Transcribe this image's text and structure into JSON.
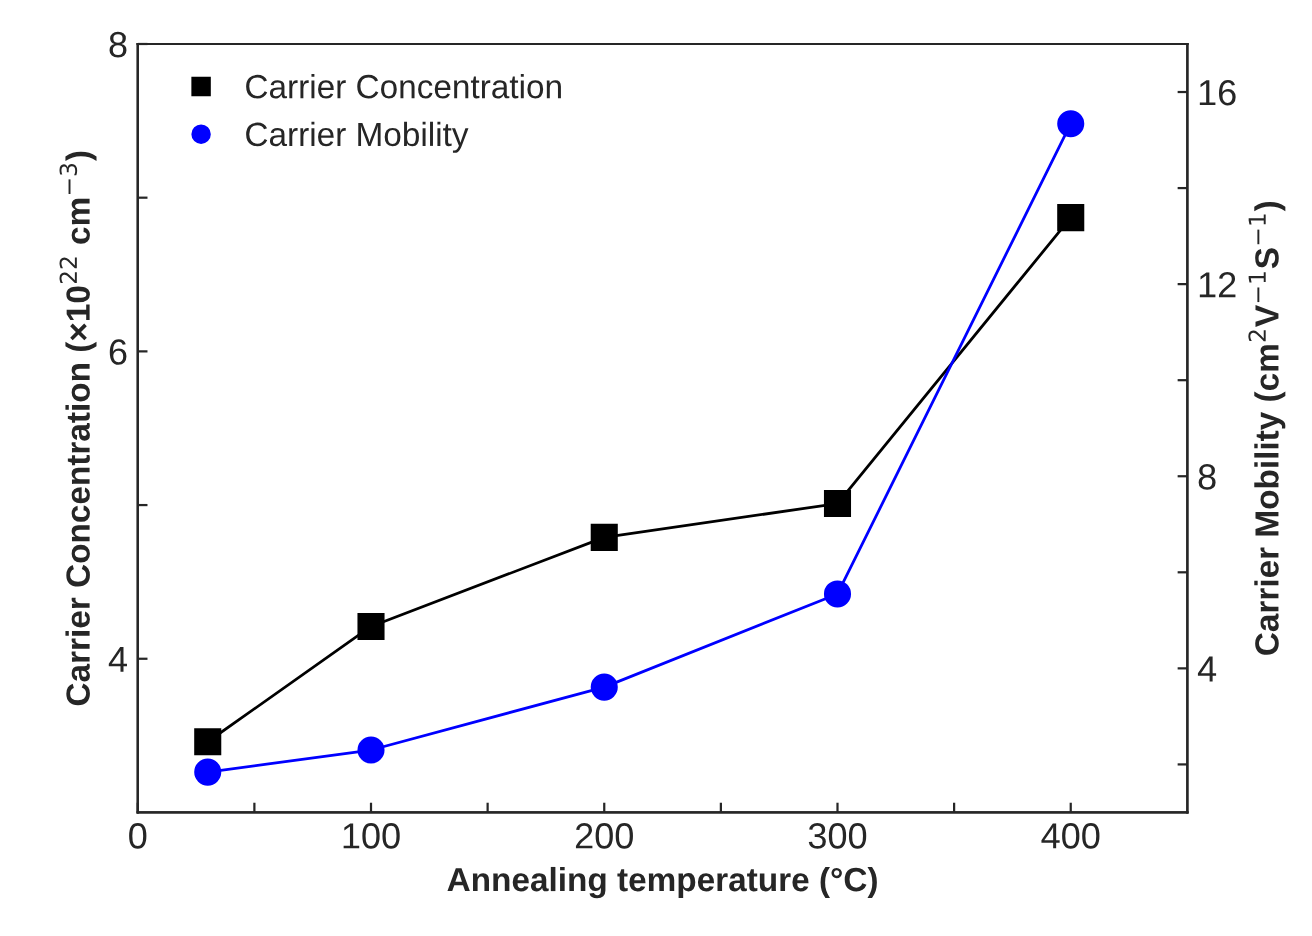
{
  "chart_data": {
    "type": "line",
    "xlabel": "Annealing temperature (°C)",
    "ylabel": "Carrier Concentration (×10$^{22}$ cm$^{−3}$)",
    "y2label": "Carrier Mobility (cm$^{2}$V$^{−1}$S$^{−1}$)",
    "x": [
      30,
      100,
      200,
      300,
      400
    ],
    "series": [
      {
        "name": "Carrier Concentration",
        "color": "#000000",
        "marker": "square",
        "values": [
          3.46,
          4.21,
          4.79,
          5.01,
          6.87
        ]
      },
      {
        "name": "Carrier Mobility",
        "color": "#0000ff",
        "marker": "circle",
        "axis": "y2",
        "values": [
          1.84,
          2.3,
          3.61,
          5.55,
          15.34
        ]
      }
    ],
    "xlim": [
      0,
      450
    ],
    "xticks": [
      0,
      {
        "value": 50,
        "label": null
      },
      100,
      {
        "value": 150,
        "label": null
      },
      200,
      {
        "value": 250,
        "label": null
      },
      300,
      {
        "value": 350,
        "label": null
      },
      400
    ],
    "ylim": [
      3,
      8
    ],
    "yticks": [
      4,
      {
        "value": 5,
        "label": null
      },
      6,
      {
        "value": 7,
        "label": null
      },
      8
    ],
    "y2lim": [
      1,
      17
    ],
    "y2ticks": [
      {
        "value": 2,
        "label": null
      },
      4,
      {
        "value": 6,
        "label": null
      },
      8,
      {
        "value": 10,
        "label": null
      },
      12,
      {
        "value": 14,
        "label": null
      },
      16
    ],
    "legend": "top left",
    "grid": false,
    "line_style": "solid"
  }
}
